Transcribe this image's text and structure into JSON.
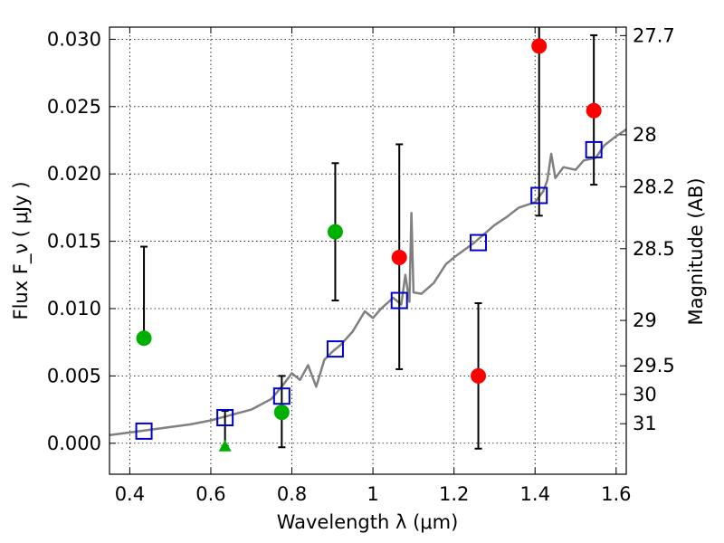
{
  "chart_data": {
    "type": "scatter",
    "xlabel": "Wavelength  λ (μm)",
    "ylabel": "Flux  F_ν  ( μJy )",
    "y2label": "Magnitude (AB)",
    "xlim": [
      0.35,
      1.625
    ],
    "ylim": [
      -0.0023,
      0.0309
    ],
    "grid": true,
    "x_ticks": [
      0.4,
      0.6,
      0.8,
      1.0,
      1.2,
      1.4,
      1.6
    ],
    "x_tick_labels": [
      "0.4",
      "0.6",
      "0.8",
      "1",
      "1.2",
      "1.4",
      "1.6"
    ],
    "y_ticks": [
      0.0,
      0.005,
      0.01,
      0.015,
      0.02,
      0.025,
      0.03
    ],
    "y_tick_labels": [
      "0.000",
      "0.005",
      "0.010",
      "0.015",
      "0.020",
      "0.025",
      "0.030"
    ],
    "magnitude_ticks": [
      {
        "label": "27.7",
        "flux": 0.03027
      },
      {
        "label": "28",
        "flux": 0.02291
      },
      {
        "label": "28.2",
        "flux": 0.01905
      },
      {
        "label": "28.5",
        "flux": 0.01445
      },
      {
        "label": "29",
        "flux": 0.00912
      },
      {
        "label": "29.5",
        "flux": 0.00575
      },
      {
        "label": "30",
        "flux": 0.00363
      },
      {
        "label": "31",
        "flux": 0.00145
      }
    ],
    "series": [
      {
        "marker": "circle",
        "color": "#00b000",
        "points": [
          {
            "x": 0.435,
            "y": 0.0078,
            "err_low": 0.0078,
            "err_high": 0.0146
          },
          {
            "x": 0.775,
            "y": 0.0023,
            "err_low": -0.0003,
            "err_high": 0.005
          },
          {
            "x": 0.907,
            "y": 0.0157,
            "err_low": 0.0106,
            "err_high": 0.0208
          }
        ]
      },
      {
        "marker": "triangle",
        "color": "#00b000",
        "points": [
          {
            "x": 0.635,
            "y": -0.0002,
            "err_low": -0.0002,
            "err_high": 0.0024
          }
        ]
      },
      {
        "marker": "circle",
        "color": "#ff0000",
        "points": [
          {
            "x": 1.065,
            "y": 0.0138,
            "err_low": 0.0055,
            "err_high": 0.0222
          },
          {
            "x": 1.26,
            "y": 0.005,
            "err_low": -0.0004,
            "err_high": 0.0104
          },
          {
            "x": 1.41,
            "y": 0.0295,
            "err_low": 0.0169,
            "err_high": 0.031
          },
          {
            "x": 1.545,
            "y": 0.0247,
            "err_low": 0.0192,
            "err_high": 0.0303
          }
        ]
      },
      {
        "marker": "open-square",
        "color": "#0000cc",
        "points": [
          {
            "x": 0.435,
            "y": 0.0009
          },
          {
            "x": 0.635,
            "y": 0.0019
          },
          {
            "x": 0.775,
            "y": 0.0035
          },
          {
            "x": 0.907,
            "y": 0.007
          },
          {
            "x": 1.065,
            "y": 0.0106
          },
          {
            "x": 1.26,
            "y": 0.0149
          },
          {
            "x": 1.41,
            "y": 0.0184
          },
          {
            "x": 1.545,
            "y": 0.0218
          }
        ]
      },
      {
        "marker": "line",
        "color": "#808080",
        "points": [
          {
            "x": 0.35,
            "y": 0.0006
          },
          {
            "x": 0.4,
            "y": 0.0008
          },
          {
            "x": 0.45,
            "y": 0.001
          },
          {
            "x": 0.5,
            "y": 0.0012
          },
          {
            "x": 0.55,
            "y": 0.0014
          },
          {
            "x": 0.6,
            "y": 0.0017
          },
          {
            "x": 0.65,
            "y": 0.0021
          },
          {
            "x": 0.7,
            "y": 0.0025
          },
          {
            "x": 0.75,
            "y": 0.0033
          },
          {
            "x": 0.78,
            "y": 0.0044
          },
          {
            "x": 0.8,
            "y": 0.0052
          },
          {
            "x": 0.82,
            "y": 0.0047
          },
          {
            "x": 0.84,
            "y": 0.0058
          },
          {
            "x": 0.86,
            "y": 0.0042
          },
          {
            "x": 0.88,
            "y": 0.0062
          },
          {
            "x": 0.9,
            "y": 0.0068
          },
          {
            "x": 0.92,
            "y": 0.0073
          },
          {
            "x": 0.95,
            "y": 0.0083
          },
          {
            "x": 0.98,
            "y": 0.0098
          },
          {
            "x": 1.0,
            "y": 0.0093
          },
          {
            "x": 1.02,
            "y": 0.01
          },
          {
            "x": 1.05,
            "y": 0.0108
          },
          {
            "x": 1.07,
            "y": 0.0103
          },
          {
            "x": 1.08,
            "y": 0.0125
          },
          {
            "x": 1.09,
            "y": 0.0105
          },
          {
            "x": 1.095,
            "y": 0.0171
          },
          {
            "x": 1.1,
            "y": 0.0112
          },
          {
            "x": 1.12,
            "y": 0.0111
          },
          {
            "x": 1.15,
            "y": 0.0119
          },
          {
            "x": 1.18,
            "y": 0.0133
          },
          {
            "x": 1.2,
            "y": 0.0138
          },
          {
            "x": 1.25,
            "y": 0.0149
          },
          {
            "x": 1.3,
            "y": 0.0162
          },
          {
            "x": 1.33,
            "y": 0.0168
          },
          {
            "x": 1.36,
            "y": 0.0175
          },
          {
            "x": 1.4,
            "y": 0.0179
          },
          {
            "x": 1.42,
            "y": 0.0187
          },
          {
            "x": 1.43,
            "y": 0.0195
          },
          {
            "x": 1.44,
            "y": 0.0215
          },
          {
            "x": 1.45,
            "y": 0.0197
          },
          {
            "x": 1.47,
            "y": 0.0205
          },
          {
            "x": 1.5,
            "y": 0.0203
          },
          {
            "x": 1.52,
            "y": 0.021
          },
          {
            "x": 1.55,
            "y": 0.0212
          },
          {
            "x": 1.57,
            "y": 0.0221
          },
          {
            "x": 1.6,
            "y": 0.0228
          },
          {
            "x": 1.625,
            "y": 0.0233
          }
        ]
      }
    ]
  }
}
